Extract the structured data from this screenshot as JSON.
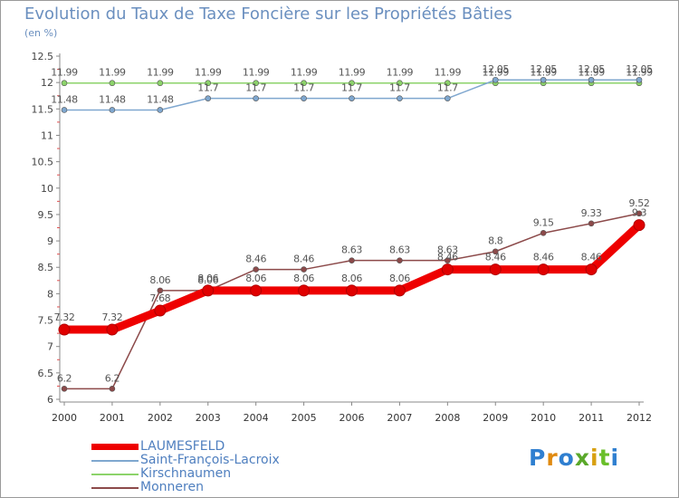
{
  "title": "Evolution du Taux de Taxe Foncière sur les Propriétés Bâties",
  "unit_label": "(en %)",
  "logo": {
    "text": "Proxiti",
    "colors": [
      "#2f7fd0",
      "#e08a10",
      "#2f7fd0",
      "#5aa82a",
      "#d8a010",
      "#6abf2a",
      "#2f7fd0"
    ]
  },
  "chart_data": {
    "type": "line",
    "title": "Evolution du Taux de Taxe Foncière sur les Propriétés Bâties",
    "ylabel": "(en %)",
    "xlabel": "",
    "ylim": [
      6,
      12.5
    ],
    "yticks": [
      "6",
      "6.5",
      "7",
      "7.5",
      "8",
      "8.5",
      "9",
      "9.5",
      "10",
      "10.5",
      "11",
      "11.5",
      "12",
      "12.5"
    ],
    "categories": [
      "2000",
      "2001",
      "2002",
      "2003",
      "2004",
      "2005",
      "2006",
      "2007",
      "2008",
      "2009",
      "2010",
      "2011",
      "2012"
    ],
    "grid": false,
    "legend": "bottom-left",
    "series": [
      {
        "name": "Kirschnaumen",
        "color": "#8cd36a",
        "values": [
          11.99,
          11.99,
          11.99,
          11.99,
          11.99,
          11.99,
          11.99,
          11.99,
          11.99,
          11.99,
          11.99,
          11.99,
          11.99
        ],
        "labels": [
          "11.99",
          "11.99",
          "11.99",
          "11.99",
          "11.99",
          "11.99",
          "11.99",
          "11.99",
          "11.99",
          "11.99",
          "11.99",
          "11.99",
          "11.99"
        ]
      },
      {
        "name": "Saint-François-Lacroix",
        "color": "#7fa7cf",
        "values": [
          11.48,
          11.48,
          11.48,
          11.7,
          11.7,
          11.7,
          11.7,
          11.7,
          11.7,
          12.05,
          12.05,
          12.05,
          12.05
        ],
        "labels": [
          "11.48",
          "11.48",
          "11.48",
          "11.7",
          "11.7",
          "11.7",
          "11.7",
          "11.7",
          "11.7",
          "12.05",
          "12.05",
          "12.05",
          "12.05"
        ]
      },
      {
        "name": "Monneren",
        "color": "#8c4a4a",
        "values": [
          6.2,
          6.2,
          8.06,
          8.06,
          8.46,
          8.46,
          8.63,
          8.63,
          8.63,
          8.8,
          9.15,
          9.33,
          9.52
        ],
        "labels": [
          "6.2",
          "6.2",
          "8.06",
          "8.06",
          "8.46",
          "8.46",
          "8.63",
          "8.63",
          "8.63",
          "8.8",
          "9.15",
          "9.33",
          "9.52"
        ]
      },
      {
        "name": "LAUMESFELD",
        "color": "#ee0000",
        "values": [
          7.32,
          7.32,
          7.68,
          8.06,
          8.06,
          8.06,
          8.06,
          8.06,
          8.46,
          8.46,
          8.46,
          8.46,
          9.3
        ],
        "labels": [
          "7.32",
          "7.32",
          "7.68",
          "8.06",
          "8.06",
          "8.06",
          "8.06",
          "8.06",
          "8.46",
          "8.46",
          "8.46",
          "8.46",
          "9.3"
        ]
      }
    ],
    "legend_order": [
      "LAUMESFELD",
      "Saint-François-Lacroix",
      "Kirschnaumen",
      "Monneren"
    ]
  }
}
